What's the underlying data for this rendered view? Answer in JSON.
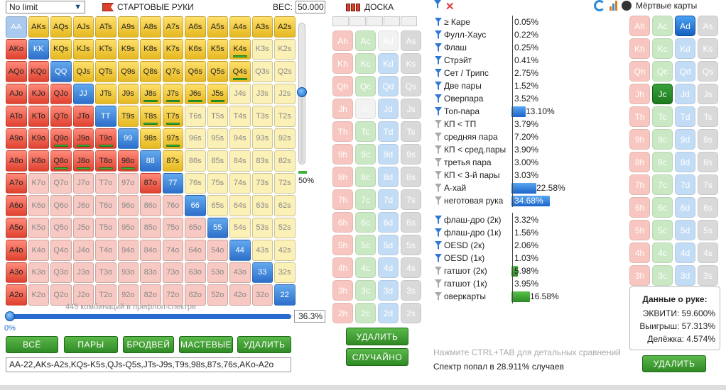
{
  "left": {
    "limit": "No limit",
    "title": "СТАРТОВЫЕ РУКИ",
    "weight_label": "ВЕС:",
    "weight_value": "50.000",
    "slider_pct": "50%",
    "combos_text": "445 комбинаций в префлоп-спектре",
    "range_pct": "36.3%",
    "min_pct": "0%",
    "buttons": [
      "ВСЁ",
      "ПАРЫ",
      "БРОДВЕЙ",
      "МАСТЕВЫЕ",
      "УДАЛИТЬ"
    ],
    "range_string": "AA-22,AKs-A2s,KQs-K5s,QJs-Q5s,JTs-J9s,T9s,98s,87s,76s,AKo-A2o"
  },
  "matrix": [
    [
      "AA",
      "AKs",
      "AQs",
      "AJs",
      "ATs",
      "A9s",
      "A8s",
      "A7s",
      "A6s",
      "A5s",
      "A4s",
      "A3s",
      "A2s"
    ],
    [
      "AKo",
      "KK",
      "KQs",
      "KJs",
      "KTs",
      "K9s",
      "K8s",
      "K7s",
      "K6s",
      "K5s",
      "K4s",
      "K3s",
      "K2s"
    ],
    [
      "AQo",
      "KQo",
      "QQ",
      "QJs",
      "QTs",
      "Q9s",
      "Q8s",
      "Q7s",
      "Q6s",
      "Q5s",
      "Q4s",
      "Q3s",
      "Q2s"
    ],
    [
      "AJo",
      "KJo",
      "QJo",
      "JJ",
      "JTs",
      "J9s",
      "J8s",
      "J7s",
      "J6s",
      "J5s",
      "J4s",
      "J3s",
      "J2s"
    ],
    [
      "ATo",
      "KTo",
      "QTo",
      "JTo",
      "TT",
      "T9s",
      "T8s",
      "T7s",
      "T6s",
      "T5s",
      "T4s",
      "T3s",
      "T2s"
    ],
    [
      "A9o",
      "K9o",
      "Q9o",
      "J9o",
      "T9o",
      "99",
      "98s",
      "97s",
      "96s",
      "95s",
      "94s",
      "93s",
      "92s"
    ],
    [
      "A8o",
      "K8o",
      "Q8o",
      "J8o",
      "T8o",
      "98o",
      "88",
      "87s",
      "86s",
      "85s",
      "84s",
      "83s",
      "82s"
    ],
    [
      "A7o",
      "K7o",
      "Q7o",
      "J7o",
      "T7o",
      "97o",
      "87o",
      "77",
      "76s",
      "75s",
      "74s",
      "73s",
      "72s"
    ],
    [
      "A6o",
      "K6o",
      "Q6o",
      "J6o",
      "T6o",
      "96o",
      "86o",
      "76o",
      "66",
      "65s",
      "64s",
      "63s",
      "62s"
    ],
    [
      "A5o",
      "K5o",
      "Q5o",
      "J5o",
      "T5o",
      "95o",
      "85o",
      "75o",
      "65o",
      "55",
      "54s",
      "53s",
      "52s"
    ],
    [
      "A4o",
      "K4o",
      "Q4o",
      "J4o",
      "T4o",
      "94o",
      "84o",
      "74o",
      "64o",
      "54o",
      "44",
      "43s",
      "42s"
    ],
    [
      "A3o",
      "K3o",
      "Q3o",
      "J3o",
      "T3o",
      "93o",
      "83o",
      "73o",
      "63o",
      "53o",
      "43o",
      "33",
      "32s"
    ],
    [
      "A2o",
      "K2o",
      "Q2o",
      "J2o",
      "T2o",
      "92o",
      "82o",
      "72o",
      "62o",
      "52o",
      "42o",
      "32o",
      "22"
    ]
  ],
  "in_range": {
    "pairs": [
      "AA",
      "KK",
      "QQ",
      "JJ",
      "TT",
      "99",
      "88",
      "77",
      "66",
      "55",
      "44",
      "33",
      "22"
    ],
    "dimmed": [
      "K3s",
      "K2s",
      "Q3s",
      "Q2s",
      "J4s",
      "J3s",
      "J2s",
      "T6s",
      "T5s",
      "T4s",
      "T3s",
      "T2s"
    ],
    "excluded_pairs_light": [
      "AA"
    ],
    "highlighted_pair_strong": [
      "KK",
      "QQ",
      "TT",
      "99",
      "88",
      "77",
      "66",
      "55",
      "44",
      "33",
      "22"
    ],
    "marked": [
      "K4s",
      "Q4s",
      "J8s",
      "J7s",
      "J6s",
      "J5s",
      "T8s",
      "T7s",
      "97s",
      "Q9o",
      "J9o",
      "T9o",
      "Q8o",
      "J8o",
      "T8o",
      "98o"
    ]
  },
  "board": {
    "title": "ДОСКА",
    "slots": 5,
    "delete": "УДАЛИТЬ",
    "random": "СЛУЧАЙНО",
    "ranks": [
      "A",
      "K",
      "Q",
      "J",
      "T",
      "9",
      "8",
      "7",
      "6",
      "5",
      "4",
      "3",
      "2"
    ],
    "suits": [
      "h",
      "c",
      "d",
      "s"
    ],
    "used": [
      "Ad",
      "Jc"
    ]
  },
  "stats": {
    "made": [
      {
        "label": "≥ Каре",
        "value": "0.05%",
        "pct": 0.05,
        "active": true
      },
      {
        "label": "Фулл-Хаус",
        "value": "0.22%",
        "pct": 0.22,
        "active": true
      },
      {
        "label": "Флаш",
        "value": "0.25%",
        "pct": 0.25,
        "active": true
      },
      {
        "label": "Стрэйт",
        "value": "0.41%",
        "pct": 0.41,
        "active": true
      },
      {
        "label": "Сет / Трипс",
        "value": "2.75%",
        "pct": 2.75,
        "active": true
      },
      {
        "label": "Две пары",
        "value": "1.52%",
        "pct": 1.52,
        "active": true
      },
      {
        "label": "Оверпара",
        "value": "3.52%",
        "pct": 3.52,
        "active": true
      },
      {
        "label": "Топ-пара",
        "value": "13.10%",
        "pct": 13.1,
        "active": true
      },
      {
        "label": "КП < ТП",
        "value": "3.79%",
        "pct": 3.79,
        "active": false
      },
      {
        "label": "средняя пара",
        "value": "7.20%",
        "pct": 7.2,
        "active": false
      },
      {
        "label": "КП < сред.пары",
        "value": "3.90%",
        "pct": 3.9,
        "active": false
      },
      {
        "label": "третья пара",
        "value": "3.00%",
        "pct": 3.0,
        "active": false
      },
      {
        "label": "КП < 3-й пары",
        "value": "3.03%",
        "pct": 3.03,
        "active": false
      },
      {
        "label": "А-хай",
        "value": "22.58%",
        "pct": 22.58,
        "active": false
      },
      {
        "label": "неготовая рука",
        "value": "34.68%",
        "pct": 34.68,
        "active": false
      }
    ],
    "draws": [
      {
        "label": "флаш-дро (2к)",
        "value": "3.32%",
        "pct": 3.32,
        "active": true
      },
      {
        "label": "флаш-дро (1к)",
        "value": "1.56%",
        "pct": 1.56,
        "active": true
      },
      {
        "label": "OESD (2к)",
        "value": "2.06%",
        "pct": 2.06,
        "active": true
      },
      {
        "label": "OESD (1к)",
        "value": "1.03%",
        "pct": 1.03,
        "active": true
      },
      {
        "label": "гатшот (2к)",
        "value": "5.98%",
        "pct": 5.98,
        "active": false
      },
      {
        "label": "гатшот (1к)",
        "value": "3.95%",
        "pct": 3.95,
        "active": false
      },
      {
        "label": "оверкарты",
        "value": "16.58%",
        "pct": 16.58,
        "active": false
      }
    ],
    "hint": "Нажмите CTRL+TAB для детальных сравнений",
    "hit_text": "Спектр попал в 28.911% случаев"
  },
  "dead": {
    "title": "Мёртвые карты",
    "delete": "УДАЛИТЬ",
    "selected": [
      "Ad",
      "Jc"
    ]
  },
  "info": {
    "title": "Данные о руке:",
    "equity": "ЭКВИТИ: 59.600%",
    "win": "Выигрыш: 57.313%",
    "tie": "Делёжка: 4.574%"
  }
}
